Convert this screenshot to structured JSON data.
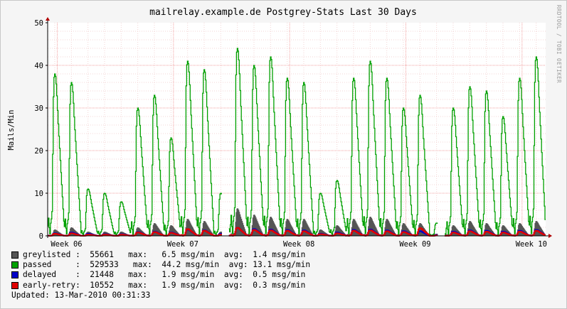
{
  "chart_data": {
    "type": "area",
    "title": "mailrelay.example.de Postgrey-Stats Last 30 Days",
    "ylabel": "Mails/Min",
    "xlabel": "",
    "ylim": [
      0,
      50
    ],
    "yticks": [
      "0",
      "10",
      "20",
      "30",
      "40",
      "50"
    ],
    "xticks": [
      "Week 06",
      "Week 07",
      "Week 08",
      "Week 09",
      "Week 10"
    ],
    "grid": true,
    "watermark": "RRDTOOL / TOBI OETIKER",
    "colors": {
      "greylisted": "#555555",
      "passed": "#00a000",
      "delayed": "#0000c8",
      "early-retry": "#e00000"
    },
    "daily_peaks": {
      "passed": [
        38,
        36,
        11,
        10,
        8,
        30,
        33,
        23,
        41,
        39,
        10,
        44,
        40,
        42,
        37,
        36,
        10,
        13,
        37,
        41,
        37,
        30,
        33,
        3,
        30,
        35,
        34,
        28,
        37,
        42
      ],
      "greylisted": [
        1.5,
        2.0,
        1.0,
        1.0,
        1.0,
        2.0,
        3.0,
        2.5,
        4.0,
        3.5,
        1.0,
        6.5,
        5.0,
        4.5,
        4.0,
        4.0,
        1.5,
        2.5,
        4.0,
        4.5,
        4.0,
        3.0,
        3.0,
        0.5,
        2.5,
        3.5,
        3.0,
        2.5,
        3.0,
        3.5
      ],
      "delayed": [
        0.6,
        0.8,
        0.5,
        0.4,
        0.4,
        0.9,
        1.0,
        0.8,
        1.5,
        1.3,
        0.5,
        1.9,
        1.6,
        1.5,
        1.4,
        1.3,
        0.5,
        0.8,
        1.4,
        1.5,
        1.3,
        1.1,
        1.1,
        0.2,
        1.0,
        1.3,
        1.2,
        1.0,
        1.2,
        1.4
      ],
      "early-retry": [
        0.5,
        0.6,
        0.3,
        0.3,
        0.3,
        0.8,
        0.9,
        0.7,
        1.6,
        1.2,
        0.3,
        1.9,
        1.4,
        1.3,
        1.2,
        1.1,
        0.4,
        0.6,
        1.2,
        1.3,
        1.1,
        0.9,
        1.8,
        0.1,
        0.8,
        1.1,
        1.0,
        0.8,
        1.0,
        1.2
      ]
    },
    "gaps_days": [
      10.6,
      23.6
    ]
  },
  "legend": [
    {
      "key": "greylisted",
      "text": "greylisted :  55661   max:   6.5 msg/min  avg:  1.4 msg/min"
    },
    {
      "key": "passed",
      "text": "passed     :  529533   max:  44.2 msg/min  avg: 13.1 msg/min"
    },
    {
      "key": "delayed",
      "text": "delayed    :  21448   max:   1.9 msg/min  avg:  0.5 msg/min"
    },
    {
      "key": "early-retry",
      "text": "early-retry:  10552   max:   1.9 msg/min  avg:  0.3 msg/min"
    }
  ],
  "updated": "Updated: 13-Mar-2010 00:31:33"
}
